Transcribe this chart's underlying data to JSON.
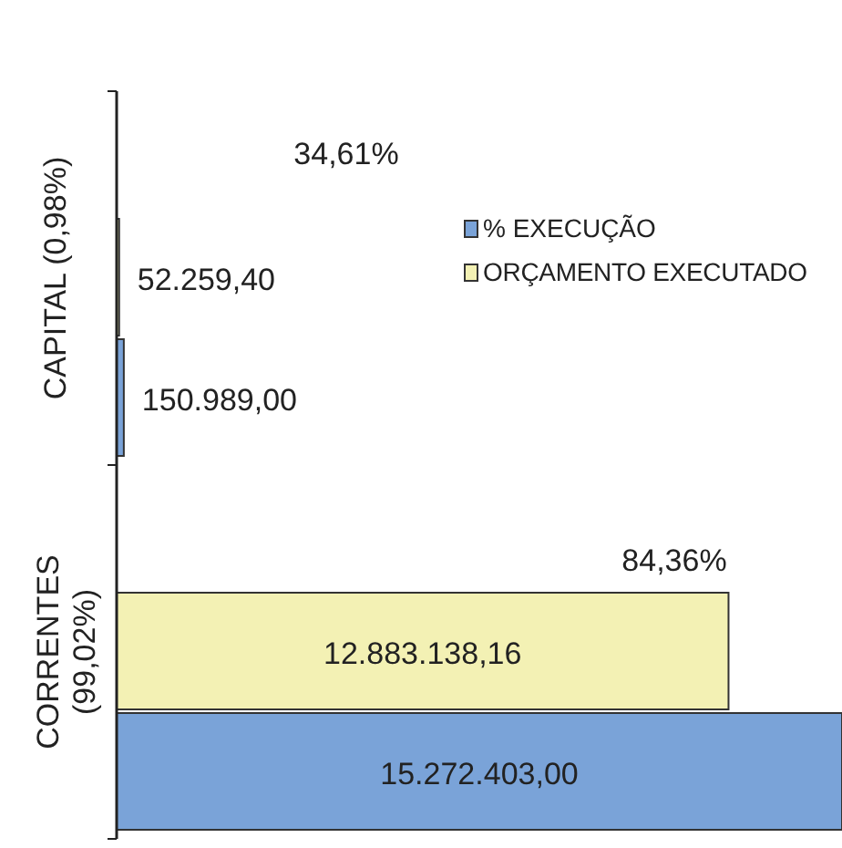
{
  "chart_data": {
    "type": "bar",
    "orientation": "horizontal",
    "categories": [
      "CAPITAL (0,98%)",
      "CORRENTES (99,02%)"
    ],
    "xlim": [
      0,
      15272403
    ],
    "series": [
      {
        "name": "% EXECUÇÃO",
        "color": "#7aa3d8",
        "values": [
          150989,
          15272403
        ],
        "value_labels": [
          "150.989,00",
          "15.272.403,00"
        ]
      },
      {
        "name": "ORÇAMENTO EXECUTADO",
        "color": "#f3f1b4",
        "values": [
          52259.4,
          12883138.16
        ],
        "value_labels": [
          "52.259,40",
          "12.883.138,16"
        ]
      }
    ],
    "annotations": [
      "34,61%",
      "84,36%"
    ],
    "legend": "right",
    "tick_labels": "y"
  }
}
